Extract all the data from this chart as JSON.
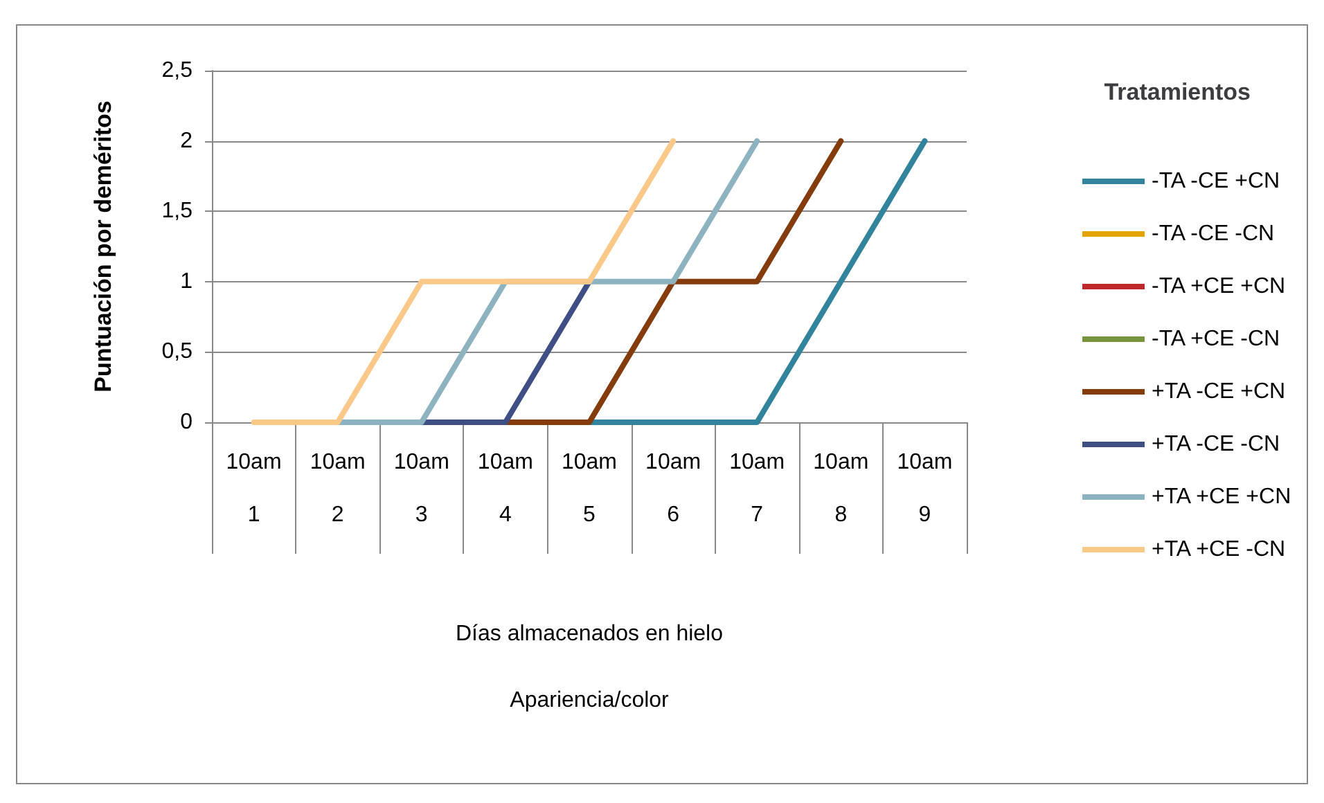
{
  "chart_data": {
    "type": "line",
    "ylabel": "Puntuación por deméritos",
    "annotations": [
      "Días almacenados en hielo",
      "Apariencia/color"
    ],
    "legend_title": "Tratamientos",
    "categories": [
      "10am\n1",
      "10am\n2",
      "10am\n3",
      "10am\n4",
      "10am\n5",
      "10am\n6",
      "10am\n7",
      "10am\n8",
      "10am\n9"
    ],
    "series": [
      {
        "name": "-TA -CE +CN",
        "color": "#31849b",
        "values": [
          null,
          null,
          null,
          null,
          0,
          0,
          0,
          1,
          2
        ]
      },
      {
        "name": "-TA -CE -CN",
        "color": "#e5a300",
        "values": [
          null,
          null,
          null,
          null,
          null,
          null,
          null,
          null,
          null
        ]
      },
      {
        "name": "-TA +CE +CN",
        "color": "#c0282d",
        "values": [
          null,
          null,
          null,
          null,
          null,
          null,
          null,
          null,
          null
        ]
      },
      {
        "name": "-TA +CE -CN",
        "color": "#77933c",
        "values": [
          null,
          null,
          null,
          null,
          null,
          null,
          null,
          null,
          null
        ]
      },
      {
        "name": "+TA -CE +CN",
        "color": "#843c0c",
        "values": [
          null,
          null,
          null,
          0,
          0,
          1,
          1,
          2,
          null
        ]
      },
      {
        "name": "+TA -CE -CN",
        "color": "#3f4f85",
        "values": [
          null,
          null,
          0,
          0,
          1,
          null,
          null,
          null,
          null
        ]
      },
      {
        "name": "+TA +CE +CN",
        "color": "#8db3c1",
        "values": [
          null,
          0,
          0,
          1,
          1,
          1,
          2,
          null,
          null
        ]
      },
      {
        "name": "+TA +CE -CN",
        "color": "#fac98a",
        "values": [
          0,
          0,
          1,
          1,
          1,
          2,
          null,
          null,
          null
        ]
      }
    ],
    "ylim": [
      0,
      2.5
    ],
    "yticks": [
      0,
      {
        "value": 0.5,
        "label": "0,5"
      },
      1,
      {
        "value": 1.5,
        "label": "1,5"
      },
      2,
      {
        "value": 2.5,
        "label": "2,5"
      }
    ],
    "grid": "y",
    "legend": "right",
    "marker": "none",
    "line_style": "solid"
  }
}
